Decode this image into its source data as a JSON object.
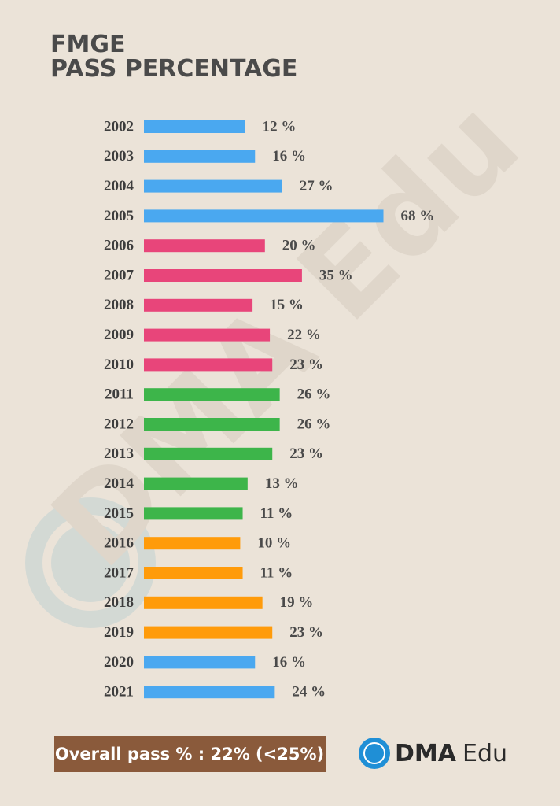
{
  "chart_data": {
    "type": "hbar",
    "title": "FMGE",
    "subtitle": "PASS PERCENTAGE",
    "categories": [
      "2002",
      "2003",
      "2004",
      "2005",
      "2006",
      "2007",
      "2008",
      "2009",
      "2010",
      "2011",
      "2012",
      "2013",
      "2014",
      "2015",
      "2016",
      "2017",
      "2018",
      "2019",
      "2020",
      "2021"
    ],
    "values": [
      12,
      16,
      27,
      68,
      20,
      35,
      15,
      22,
      23,
      26,
      26,
      23,
      13,
      11,
      10,
      11,
      19,
      23,
      16,
      24
    ],
    "value_labels": [
      "12 %",
      "16 %",
      "27 %",
      "68 %",
      "20 %",
      "35 %",
      "15 %",
      "22 %",
      "23 %",
      "26 %",
      "26 %",
      "23 %",
      "13 %",
      "11 %",
      "10 %",
      "11 %",
      "19 %",
      "23 %",
      "16 %",
      "24 %"
    ],
    "colors": [
      "#4aa8f0",
      "#4aa8f0",
      "#4aa8f0",
      "#4aa8f0",
      "#e8457a",
      "#e8457a",
      "#e8457a",
      "#e8457a",
      "#e8457a",
      "#3db54a",
      "#3db54a",
      "#3db54a",
      "#3db54a",
      "#3db54a",
      "#ff9b0a",
      "#ff9b0a",
      "#ff9b0a",
      "#ff9b0a",
      "#4aa8f0",
      "#4aa8f0"
    ],
    "annotation": "Overall pass % :  22% (<25%)",
    "logo_bold": "DMA",
    "logo_light": "Edu",
    "watermark": "DMA Edu"
  }
}
